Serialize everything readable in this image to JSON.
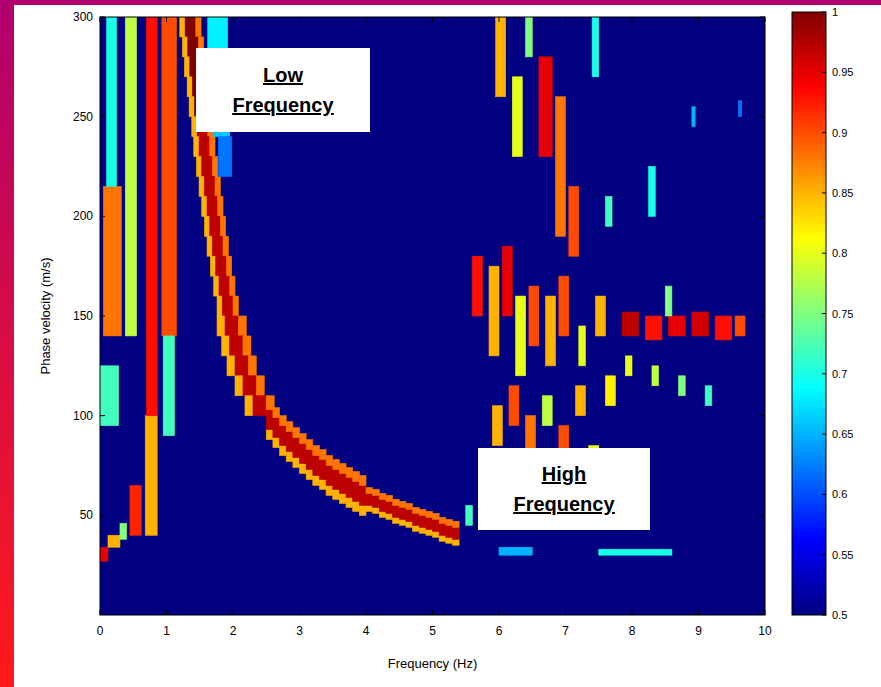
{
  "chart_data": {
    "type": "heatmap",
    "x_label": "Frequency (Hz)",
    "y_label": "Phase velocity (m/s)",
    "xlim": [
      0,
      10
    ],
    "xticks": [
      0,
      1,
      2,
      3,
      4,
      5,
      6,
      7,
      8,
      9,
      10
    ],
    "ylim": [
      0,
      300
    ],
    "yticks": [
      50,
      100,
      150,
      200,
      250,
      300
    ],
    "annotations": [
      "Low Frequency",
      "High Frequency"
    ],
    "colorbar": {
      "range": [
        0.5,
        1
      ],
      "ticks": [
        0.5,
        0.55,
        0.6,
        0.65,
        0.7,
        0.75,
        0.8,
        0.85,
        0.9,
        0.95,
        1
      ]
    },
    "cells": [
      [
        1.2,
        1.28,
        290,
        300,
        0.85
      ],
      [
        1.28,
        1.44,
        290,
        300,
        1.0
      ],
      [
        1.44,
        1.52,
        290,
        300,
        0.88
      ],
      [
        1.24,
        1.32,
        280,
        290,
        0.85
      ],
      [
        1.32,
        1.48,
        280,
        290,
        1.0
      ],
      [
        1.48,
        1.56,
        280,
        290,
        0.88
      ],
      [
        1.27,
        1.35,
        270,
        280,
        0.85
      ],
      [
        1.35,
        1.51,
        270,
        280,
        1.0
      ],
      [
        1.51,
        1.59,
        270,
        280,
        0.88
      ],
      [
        1.31,
        1.39,
        260,
        270,
        0.85
      ],
      [
        1.39,
        1.55,
        260,
        270,
        1.0
      ],
      [
        1.55,
        1.63,
        260,
        270,
        0.88
      ],
      [
        1.34,
        1.42,
        250,
        260,
        0.85
      ],
      [
        1.42,
        1.58,
        250,
        260,
        1.0
      ],
      [
        1.58,
        1.66,
        250,
        260,
        0.88
      ],
      [
        1.38,
        1.46,
        240,
        250,
        0.85
      ],
      [
        1.46,
        1.62,
        240,
        250,
        0.97
      ],
      [
        1.62,
        1.7,
        240,
        250,
        0.88
      ],
      [
        1.41,
        1.49,
        230,
        240,
        0.85
      ],
      [
        1.49,
        1.65,
        230,
        240,
        0.97
      ],
      [
        1.65,
        1.73,
        230,
        240,
        0.88
      ],
      [
        1.45,
        1.53,
        220,
        230,
        0.85
      ],
      [
        1.53,
        1.69,
        220,
        230,
        0.97
      ],
      [
        1.69,
        1.77,
        220,
        230,
        0.88
      ],
      [
        1.49,
        1.57,
        210,
        220,
        0.85
      ],
      [
        1.57,
        1.73,
        210,
        220,
        0.97
      ],
      [
        1.73,
        1.81,
        210,
        220,
        0.88
      ],
      [
        1.53,
        1.61,
        200,
        210,
        0.85
      ],
      [
        1.61,
        1.77,
        200,
        210,
        0.97
      ],
      [
        1.77,
        1.85,
        200,
        210,
        0.88
      ],
      [
        1.57,
        1.65,
        190,
        200,
        0.85
      ],
      [
        1.65,
        1.81,
        190,
        200,
        0.97
      ],
      [
        1.81,
        1.89,
        190,
        200,
        0.88
      ],
      [
        1.61,
        1.69,
        180,
        190,
        0.85
      ],
      [
        1.69,
        1.85,
        180,
        190,
        0.97
      ],
      [
        1.85,
        1.93,
        180,
        190,
        0.88
      ],
      [
        1.66,
        1.74,
        170,
        180,
        0.85
      ],
      [
        1.74,
        1.9,
        170,
        180,
        0.97
      ],
      [
        1.9,
        1.98,
        170,
        180,
        0.88
      ],
      [
        1.71,
        1.79,
        160,
        170,
        0.85
      ],
      [
        1.79,
        1.95,
        160,
        170,
        0.97
      ],
      [
        1.95,
        2.03,
        160,
        170,
        0.88
      ],
      [
        1.76,
        1.84,
        150,
        160,
        0.85
      ],
      [
        1.84,
        2.0,
        150,
        160,
        0.97
      ],
      [
        2.0,
        2.08,
        150,
        160,
        0.88
      ],
      [
        1.76,
        1.88,
        140,
        150,
        0.85
      ],
      [
        1.88,
        2.08,
        140,
        150,
        0.97
      ],
      [
        2.08,
        2.2,
        140,
        150,
        0.88
      ],
      [
        1.83,
        1.95,
        130,
        140,
        0.85
      ],
      [
        1.95,
        2.15,
        130,
        140,
        0.97
      ],
      [
        2.15,
        2.27,
        130,
        140,
        0.88
      ],
      [
        1.91,
        2.03,
        120,
        130,
        0.85
      ],
      [
        2.03,
        2.23,
        120,
        130,
        0.97
      ],
      [
        2.23,
        2.35,
        120,
        130,
        0.88
      ],
      [
        2.03,
        2.15,
        110,
        120,
        0.85
      ],
      [
        2.15,
        2.35,
        110,
        120,
        0.97
      ],
      [
        2.35,
        2.47,
        110,
        120,
        0.88
      ],
      [
        2.18,
        2.3,
        100,
        110,
        0.85
      ],
      [
        2.3,
        2.5,
        100,
        110,
        0.97
      ],
      [
        2.5,
        2.62,
        100,
        110,
        0.88
      ],
      [
        1.62,
        1.92,
        270,
        300,
        0.68
      ],
      [
        1.7,
        1.95,
        240,
        270,
        0.66
      ],
      [
        1.78,
        1.98,
        220,
        240,
        0.62
      ],
      [
        2.5,
        2.6,
        88,
        93,
        0.85
      ],
      [
        2.5,
        2.6,
        93,
        103,
        0.97
      ],
      [
        2.5,
        2.6,
        103,
        108,
        0.88
      ],
      [
        2.6,
        2.7,
        84,
        89,
        0.85
      ],
      [
        2.6,
        2.7,
        89,
        99,
        0.97
      ],
      [
        2.6,
        2.7,
        99,
        104,
        0.88
      ],
      [
        2.7,
        2.8,
        80,
        85,
        0.85
      ],
      [
        2.7,
        2.8,
        85,
        95,
        0.97
      ],
      [
        2.7,
        2.8,
        95,
        100,
        0.88
      ],
      [
        2.8,
        2.9,
        77,
        82,
        0.85
      ],
      [
        2.8,
        2.9,
        82,
        92,
        0.97
      ],
      [
        2.8,
        2.9,
        92,
        97,
        0.88
      ],
      [
        2.9,
        3.0,
        74,
        79,
        0.85
      ],
      [
        2.9,
        3.0,
        79,
        89,
        0.97
      ],
      [
        2.9,
        3.0,
        89,
        94,
        0.88
      ],
      [
        3.0,
        3.1,
        71,
        76,
        0.85
      ],
      [
        3.0,
        3.1,
        76,
        86,
        0.97
      ],
      [
        3.0,
        3.1,
        86,
        91,
        0.88
      ],
      [
        3.1,
        3.2,
        68,
        73,
        0.85
      ],
      [
        3.1,
        3.2,
        73,
        83,
        0.97
      ],
      [
        3.1,
        3.2,
        83,
        88,
        0.88
      ],
      [
        3.2,
        3.3,
        65,
        70,
        0.85
      ],
      [
        3.2,
        3.3,
        70,
        80,
        0.97
      ],
      [
        3.2,
        3.3,
        80,
        85,
        0.88
      ],
      [
        3.3,
        3.4,
        63,
        68,
        0.85
      ],
      [
        3.3,
        3.4,
        68,
        78,
        0.97
      ],
      [
        3.3,
        3.4,
        78,
        83,
        0.88
      ],
      [
        3.4,
        3.5,
        60,
        65,
        0.85
      ],
      [
        3.4,
        3.5,
        65,
        75,
        0.97
      ],
      [
        3.4,
        3.5,
        75,
        80,
        0.88
      ],
      [
        3.5,
        3.6,
        58,
        63,
        0.85
      ],
      [
        3.5,
        3.6,
        63,
        73,
        0.97
      ],
      [
        3.5,
        3.6,
        73,
        78,
        0.88
      ],
      [
        3.6,
        3.7,
        56,
        61,
        0.85
      ],
      [
        3.6,
        3.7,
        61,
        71,
        0.97
      ],
      [
        3.6,
        3.7,
        71,
        76,
        0.88
      ],
      [
        3.7,
        3.8,
        54,
        59,
        0.85
      ],
      [
        3.7,
        3.8,
        59,
        69,
        0.97
      ],
      [
        3.7,
        3.8,
        69,
        74,
        0.88
      ],
      [
        3.8,
        3.9,
        52,
        57,
        0.85
      ],
      [
        3.8,
        3.9,
        57,
        67,
        0.97
      ],
      [
        3.8,
        3.9,
        67,
        72,
        0.88
      ],
      [
        3.9,
        4.0,
        50,
        55,
        0.85
      ],
      [
        3.9,
        4.0,
        55,
        65,
        0.97
      ],
      [
        3.9,
        4.0,
        65,
        70,
        0.88
      ],
      [
        4.0,
        4.1,
        52,
        55,
        0.85
      ],
      [
        4.0,
        4.1,
        55,
        61,
        0.97
      ],
      [
        4.0,
        4.1,
        61,
        64,
        0.88
      ],
      [
        4.1,
        4.2,
        51,
        54,
        0.85
      ],
      [
        4.1,
        4.2,
        54,
        60,
        0.97
      ],
      [
        4.1,
        4.2,
        60,
        63,
        0.88
      ],
      [
        4.2,
        4.3,
        49,
        52,
        0.85
      ],
      [
        4.2,
        4.3,
        52,
        58,
        0.97
      ],
      [
        4.2,
        4.3,
        58,
        61,
        0.88
      ],
      [
        4.3,
        4.4,
        48,
        51,
        0.85
      ],
      [
        4.3,
        4.4,
        51,
        57,
        0.97
      ],
      [
        4.3,
        4.4,
        57,
        60,
        0.88
      ],
      [
        4.4,
        4.5,
        46,
        49,
        0.85
      ],
      [
        4.4,
        4.5,
        49,
        55,
        0.97
      ],
      [
        4.4,
        4.5,
        55,
        58,
        0.88
      ],
      [
        4.5,
        4.6,
        45,
        48,
        0.85
      ],
      [
        4.5,
        4.6,
        48,
        54,
        0.97
      ],
      [
        4.5,
        4.6,
        54,
        57,
        0.88
      ],
      [
        4.6,
        4.7,
        44,
        47,
        0.85
      ],
      [
        4.6,
        4.7,
        47,
        53,
        0.97
      ],
      [
        4.6,
        4.7,
        53,
        56,
        0.88
      ],
      [
        4.7,
        4.8,
        42,
        45,
        0.85
      ],
      [
        4.7,
        4.8,
        45,
        51,
        0.97
      ],
      [
        4.7,
        4.8,
        51,
        54,
        0.88
      ],
      [
        4.8,
        4.9,
        41,
        44,
        0.85
      ],
      [
        4.8,
        4.9,
        44,
        50,
        0.97
      ],
      [
        4.8,
        4.9,
        50,
        53,
        0.88
      ],
      [
        4.9,
        5.0,
        40,
        43,
        0.85
      ],
      [
        4.9,
        5.0,
        43,
        49,
        0.97
      ],
      [
        4.9,
        5.0,
        49,
        52,
        0.88
      ],
      [
        5.0,
        5.1,
        39,
        42,
        0.85
      ],
      [
        5.0,
        5.1,
        42,
        48,
        0.97
      ],
      [
        5.0,
        5.1,
        48,
        51,
        0.88
      ],
      [
        5.1,
        5.2,
        37,
        40,
        0.85
      ],
      [
        5.1,
        5.2,
        40,
        46,
        0.97
      ],
      [
        5.1,
        5.2,
        46,
        49,
        0.88
      ],
      [
        5.2,
        5.3,
        36,
        39,
        0.85
      ],
      [
        5.2,
        5.3,
        39,
        45,
        0.97
      ],
      [
        5.2,
        5.3,
        45,
        48,
        0.88
      ],
      [
        5.3,
        5.4,
        35,
        38,
        0.85
      ],
      [
        5.3,
        5.4,
        38,
        44,
        0.97
      ],
      [
        5.3,
        5.4,
        44,
        47,
        0.88
      ],
      [
        0.0,
        0.12,
        27,
        34,
        0.95
      ],
      [
        0.12,
        0.3,
        34,
        40,
        0.85
      ],
      [
        0.3,
        0.4,
        38,
        46,
        0.75
      ],
      [
        0.45,
        0.62,
        40,
        65,
        0.92
      ],
      [
        0.0,
        0.28,
        95,
        125,
        0.72
      ],
      [
        0.05,
        0.32,
        140,
        215,
        0.88
      ],
      [
        0.1,
        0.25,
        215,
        300,
        0.7
      ],
      [
        0.38,
        0.55,
        140,
        300,
        0.78
      ],
      [
        0.68,
        0.86,
        40,
        100,
        0.85
      ],
      [
        0.7,
        0.86,
        100,
        300,
        0.93
      ],
      [
        0.93,
        1.15,
        140,
        300,
        0.9
      ],
      [
        0.95,
        1.12,
        90,
        140,
        0.72
      ],
      [
        5.95,
        6.1,
        260,
        300,
        0.85
      ],
      [
        6.2,
        6.35,
        230,
        270,
        0.8
      ],
      [
        6.6,
        6.8,
        230,
        280,
        0.95
      ],
      [
        6.85,
        7.0,
        190,
        260,
        0.88
      ],
      [
        7.05,
        7.2,
        180,
        215,
        0.9
      ],
      [
        7.4,
        7.5,
        270,
        300,
        0.7
      ],
      [
        6.4,
        6.5,
        280,
        300,
        0.75
      ],
      [
        5.6,
        5.75,
        150,
        180,
        0.93
      ],
      [
        5.85,
        6.0,
        130,
        175,
        0.85
      ],
      [
        6.05,
        6.2,
        150,
        185,
        0.95
      ],
      [
        6.25,
        6.4,
        120,
        160,
        0.8
      ],
      [
        6.45,
        6.6,
        135,
        165,
        0.9
      ],
      [
        6.7,
        6.85,
        125,
        160,
        0.85
      ],
      [
        6.9,
        7.05,
        140,
        170,
        0.9
      ],
      [
        7.2,
        7.3,
        125,
        145,
        0.8
      ],
      [
        7.45,
        7.6,
        140,
        160,
        0.85
      ],
      [
        7.6,
        7.7,
        195,
        210,
        0.72
      ],
      [
        5.9,
        6.05,
        85,
        105,
        0.85
      ],
      [
        6.15,
        6.3,
        95,
        115,
        0.9
      ],
      [
        6.4,
        6.55,
        80,
        100,
        0.88
      ],
      [
        6.65,
        6.8,
        95,
        110,
        0.78
      ],
      [
        6.9,
        7.05,
        80,
        95,
        0.9
      ],
      [
        7.15,
        7.3,
        100,
        115,
        0.85
      ],
      [
        7.35,
        7.5,
        70,
        85,
        0.8
      ],
      [
        7.6,
        7.75,
        105,
        120,
        0.82
      ],
      [
        7.85,
        8.1,
        140,
        152,
        0.97
      ],
      [
        8.2,
        8.45,
        138,
        150,
        0.93
      ],
      [
        8.55,
        8.8,
        140,
        150,
        0.95
      ],
      [
        8.9,
        9.15,
        140,
        152,
        0.96
      ],
      [
        9.25,
        9.5,
        138,
        150,
        0.93
      ],
      [
        9.55,
        9.7,
        140,
        150,
        0.9
      ],
      [
        7.9,
        8.0,
        120,
        130,
        0.8
      ],
      [
        8.3,
        8.4,
        115,
        125,
        0.78
      ],
      [
        8.7,
        8.8,
        110,
        120,
        0.75
      ],
      [
        9.1,
        9.2,
        105,
        115,
        0.72
      ],
      [
        8.25,
        8.35,
        200,
        225,
        0.7
      ],
      [
        8.5,
        8.6,
        150,
        165,
        0.75
      ],
      [
        8.9,
        8.95,
        245,
        255,
        0.65
      ],
      [
        9.6,
        9.65,
        250,
        258,
        0.62
      ],
      [
        7.5,
        8.6,
        30,
        33,
        0.7
      ],
      [
        6.0,
        6.5,
        30,
        34,
        0.65
      ],
      [
        5.5,
        5.6,
        45,
        55,
        0.72
      ]
    ]
  }
}
